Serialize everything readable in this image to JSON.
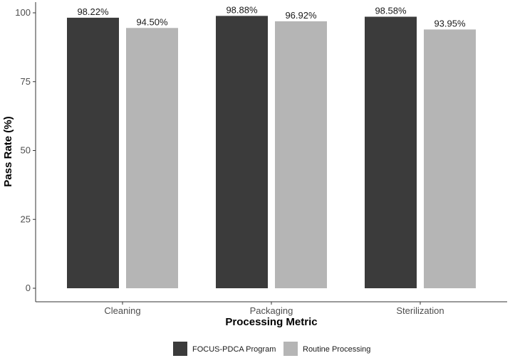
{
  "chart_data": {
    "type": "bar",
    "categories": [
      "Cleaning",
      "Packaging",
      "Sterilization"
    ],
    "series": [
      {
        "name": "FOCUS-PDCA Program",
        "values": [
          98.22,
          98.88,
          98.58
        ],
        "labels": [
          "98.22%",
          "98.88%",
          "98.58%"
        ],
        "color": "#3b3b3b"
      },
      {
        "name": "Routine Processing",
        "values": [
          94.5,
          96.92,
          93.95
        ],
        "labels": [
          "94.50%",
          "96.92%",
          "93.95%"
        ],
        "color": "#b5b5b5"
      }
    ],
    "xlabel": "Processing Metric",
    "ylabel": "Pass Rate (%)",
    "ylim": [
      0,
      100
    ],
    "yticks": [
      0,
      25,
      50,
      75,
      100
    ],
    "grid": false,
    "legend_position": "bottom"
  }
}
